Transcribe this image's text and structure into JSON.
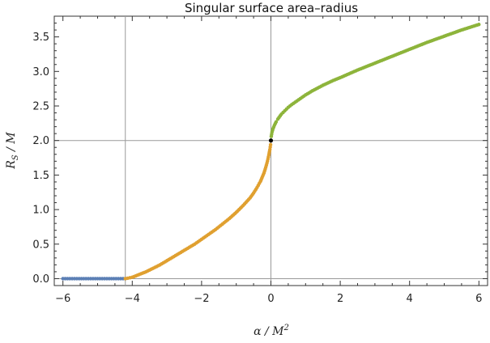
{
  "chart_data": {
    "type": "scatter",
    "title": "Singular surface area–radius",
    "xlabel": {
      "main": "α / M",
      "sup": "2"
    },
    "ylabel": {
      "main": "R",
      "sub": "S",
      "rest": " / M"
    },
    "xlim": [
      -6.25,
      6.25
    ],
    "ylim": [
      -0.1,
      3.8
    ],
    "xticks": [
      -6,
      -4,
      -2,
      0,
      2,
      4,
      6
    ],
    "xtick_labels": [
      "−6",
      "−4",
      "−2",
      "0",
      "2",
      "4",
      "6"
    ],
    "yticks": [
      0.0,
      0.5,
      1.0,
      1.5,
      2.0,
      2.5,
      3.0,
      3.5
    ],
    "ytick_labels": [
      "0.0",
      "0.5",
      "1.0",
      "1.5",
      "2.0",
      "2.5",
      "3.0",
      "3.5"
    ],
    "reference_lines": {
      "vertical": [
        -4.2,
        0
      ],
      "horizontal": [
        2.0,
        0.0
      ]
    },
    "grid": false,
    "series": [
      {
        "color": "#5b7fb5",
        "x": [
          -6.0,
          -5.8,
          -5.6,
          -5.4,
          -5.2,
          -5.0,
          -4.8,
          -4.6,
          -4.4,
          -4.2
        ],
        "y": [
          0,
          0,
          0,
          0,
          0,
          0,
          0,
          0,
          0,
          0
        ]
      },
      {
        "color": "#e0a030",
        "x": [
          -4.2,
          -4.0,
          -3.8,
          -3.6,
          -3.4,
          -3.2,
          -3.0,
          -2.8,
          -2.6,
          -2.4,
          -2.2,
          -2.0,
          -1.8,
          -1.6,
          -1.4,
          -1.2,
          -1.0,
          -0.8,
          -0.6,
          -0.5,
          -0.4,
          -0.3,
          -0.2,
          -0.15,
          -0.1,
          -0.06,
          -0.03,
          -0.01
        ],
        "y": [
          0.0,
          0.02,
          0.06,
          0.1,
          0.15,
          0.2,
          0.26,
          0.32,
          0.38,
          0.44,
          0.5,
          0.57,
          0.64,
          0.71,
          0.79,
          0.87,
          0.96,
          1.06,
          1.17,
          1.24,
          1.32,
          1.41,
          1.53,
          1.61,
          1.7,
          1.79,
          1.87,
          1.94
        ]
      },
      {
        "color": "#8db43b",
        "x": [
          0.01,
          0.03,
          0.06,
          0.1,
          0.15,
          0.2,
          0.3,
          0.4,
          0.5,
          0.6,
          0.8,
          1.0,
          1.2,
          1.5,
          1.8,
          2.0,
          2.5,
          3.0,
          3.5,
          4.0,
          4.5,
          5.0,
          5.5,
          6.0
        ],
        "y": [
          2.06,
          2.12,
          2.17,
          2.22,
          2.27,
          2.31,
          2.38,
          2.43,
          2.48,
          2.52,
          2.59,
          2.66,
          2.72,
          2.8,
          2.87,
          2.91,
          3.02,
          3.12,
          3.22,
          3.32,
          3.42,
          3.51,
          3.6,
          3.68
        ]
      },
      {
        "color": "#000000",
        "x": [
          0.0
        ],
        "y": [
          2.0
        ]
      }
    ]
  }
}
